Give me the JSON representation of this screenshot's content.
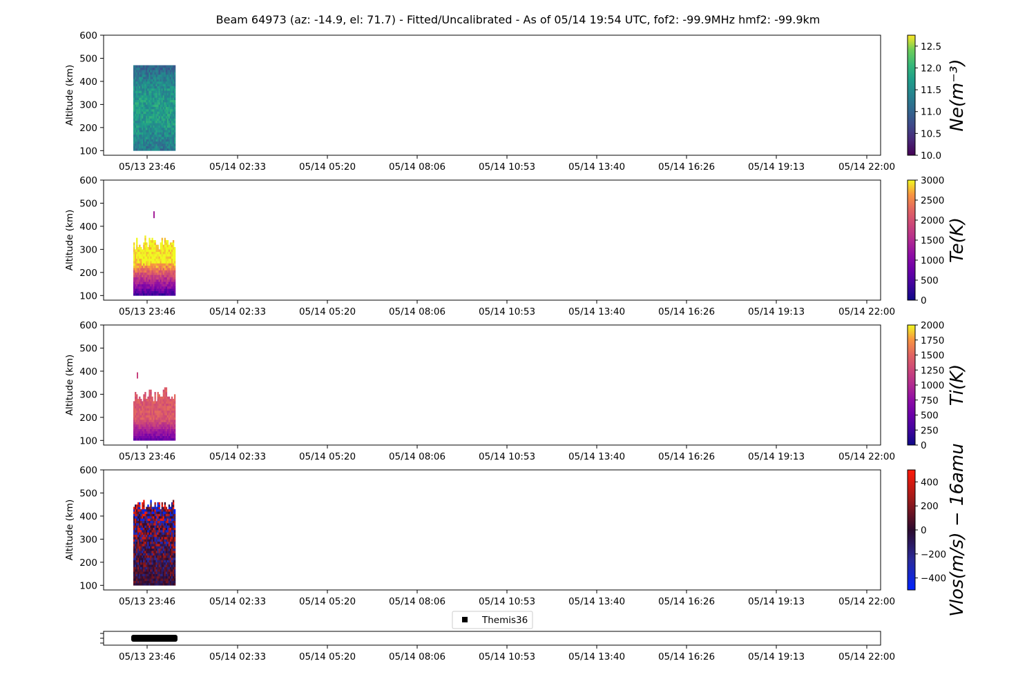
{
  "title": "Beam 64973 (az: -14.9, el: 71.7) - Fitted/Uncalibrated - As of 05/14 19:54 UTC, fof2: -99.9MHz  hmf2: -99.9km",
  "chart_data": {
    "type": "heatmap",
    "x_tick_labels": [
      "05/13 23:46",
      "05/14 02:33",
      "05/14 05:20",
      "05/14 08:06",
      "05/14 10:53",
      "05/14 13:40",
      "05/14 16:26",
      "05/14 19:13",
      "05/14 22:00"
    ],
    "data_time_range": [
      "05/13 23:00",
      "05/14 00:25"
    ],
    "ylabel": "Altitude (km)",
    "ylim": [
      80,
      600
    ],
    "y_ticks": [
      100,
      200,
      300,
      400,
      500,
      600
    ],
    "panels": [
      {
        "id": "ne",
        "colorbar_label": "Ne(m⁻³)",
        "colormap": "viridis",
        "clim": [
          10.0,
          12.75
        ],
        "colorbar_ticks": [
          "10.0",
          "10.5",
          "11.0",
          "11.5",
          "12.0",
          "12.5"
        ],
        "colorbar_tick_values": [
          10.0,
          10.5,
          11.0,
          11.5,
          12.0,
          12.5
        ],
        "data_altitude_range": [
          100,
          470
        ]
      },
      {
        "id": "te",
        "colorbar_label": "Te(K)",
        "colormap": "plasma",
        "clim": [
          0,
          3000
        ],
        "colorbar_ticks": [
          "0",
          "500",
          "1000",
          "1500",
          "2000",
          "2500",
          "3000"
        ],
        "colorbar_tick_values": [
          0,
          500,
          1000,
          1500,
          2000,
          2500,
          3000
        ],
        "data_altitude_range": [
          100,
          470
        ]
      },
      {
        "id": "ti",
        "colorbar_label": "Ti(K)",
        "colormap": "plasma",
        "clim": [
          0,
          2000
        ],
        "colorbar_ticks": [
          "0",
          "250",
          "500",
          "750",
          "1000",
          "1250",
          "1500",
          "1750",
          "2000"
        ],
        "colorbar_tick_values": [
          0,
          250,
          500,
          750,
          1000,
          1250,
          1500,
          1750,
          2000
        ],
        "data_altitude_range": [
          100,
          395
        ]
      },
      {
        "id": "vlos",
        "colorbar_label": "Vlos(m/s) − 16amu",
        "colormap": "seismic-dark",
        "clim": [
          -500,
          500
        ],
        "colorbar_ticks": [
          "−400",
          "−200",
          "0",
          "200",
          "400"
        ],
        "colorbar_tick_values": [
          -400,
          -200,
          0,
          200,
          400
        ],
        "data_altitude_range": [
          100,
          470
        ]
      }
    ],
    "legend": {
      "label": "Themis36",
      "marker": "square",
      "color": "#000000"
    }
  }
}
